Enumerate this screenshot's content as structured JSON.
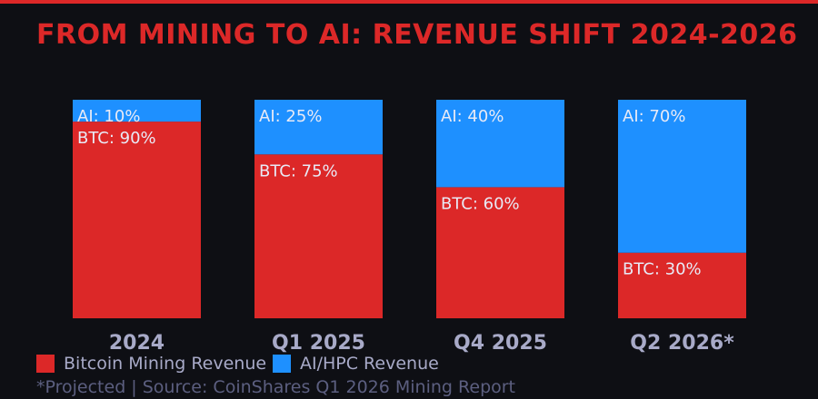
{
  "title": "FROM MINING TO AI: REVENUE SHIFT 2024-2026",
  "footer": "*Projected  |  Source: CoinShares Q1 2026 Mining Report",
  "colors": {
    "btc": "#dc2828",
    "ai": "#1e90ff",
    "background": "#0e0f14",
    "category_label": "#a8aac8"
  },
  "chart_data": {
    "type": "bar",
    "stacked": true,
    "categories": [
      "2024",
      "Q1 2025",
      "Q4 2025",
      "Q2 2026*"
    ],
    "series": [
      {
        "name": "Bitcoin Mining Revenue",
        "values": [
          90,
          75,
          60,
          30
        ],
        "labels": [
          "BTC: 90%",
          "BTC: 75%",
          "BTC: 60%",
          "BTC: 30%"
        ]
      },
      {
        "name": "AI/HPC Revenue",
        "values": [
          10,
          25,
          40,
          70
        ],
        "labels": [
          "AI: 10%",
          "AI: 25%",
          "AI: 40%",
          "AI: 70%"
        ]
      }
    ],
    "ylim": [
      0,
      100
    ],
    "grid": false,
    "legend_position": "bottom-left"
  }
}
